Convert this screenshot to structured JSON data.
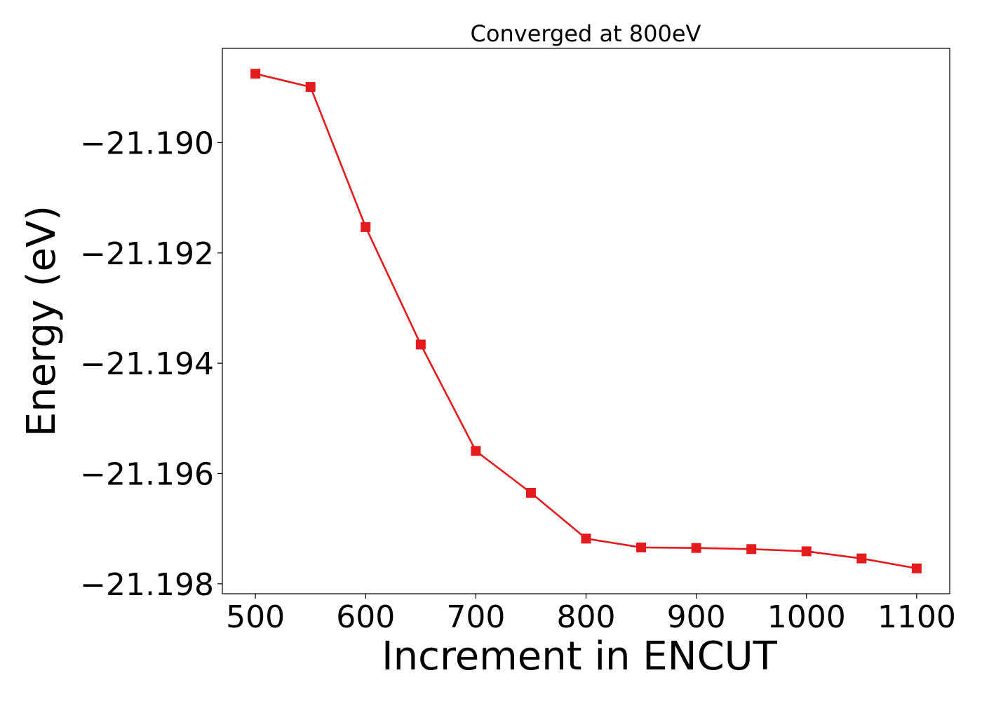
{
  "chart_data": {
    "type": "line",
    "title": "Converged at 800eV",
    "xlabel": "Increment in ENCUT",
    "ylabel": "Energy (eV)",
    "x": [
      500,
      550,
      600,
      650,
      700,
      750,
      800,
      850,
      900,
      950,
      1000,
      1050,
      1100
    ],
    "series": [
      {
        "values": [
          -21.18875,
          -21.18899,
          -21.19153,
          -21.19366,
          -21.19559,
          -21.19635,
          -21.19718,
          -21.19734,
          -21.19735,
          -21.19737,
          -21.19741,
          -21.19754,
          -21.19772
        ],
        "color": "#e41a1c",
        "marker": "square"
      }
    ],
    "xlim": [
      470,
      1130
    ],
    "ylim": [
      -21.19818,
      -21.18829
    ],
    "xticks": [
      500,
      600,
      700,
      800,
      900,
      1000,
      1100
    ],
    "xtick_labels": [
      "500",
      "600",
      "700",
      "800",
      "900",
      "1000",
      "1100"
    ],
    "yticks": [
      -21.19,
      -21.192,
      -21.194,
      -21.196,
      -21.198
    ],
    "ytick_labels": [
      "−21.190",
      "−21.192",
      "−21.194",
      "−21.196",
      "−21.198"
    ],
    "grid": false
  }
}
